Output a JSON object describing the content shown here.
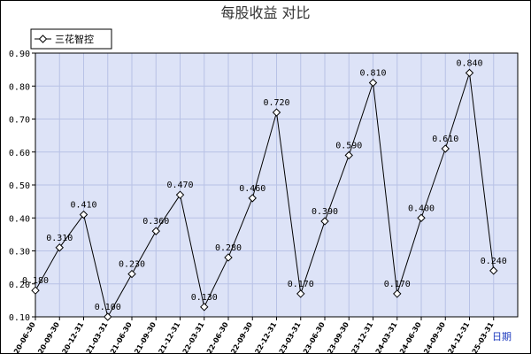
{
  "chart_data": {
    "type": "line",
    "title": "每股收益  对比",
    "xlabel": "日期",
    "ylabel": "",
    "ylim": [
      0.1,
      0.9
    ],
    "yticks": [
      "0.90",
      "0.80",
      "0.70",
      "0.60",
      "0.50",
      "0.40",
      "0.30",
      "0.20",
      "0.10"
    ],
    "grid": true,
    "legend_position": "top-left",
    "categories": [
      "2020-06-30",
      "2020-09-30",
      "2020-12-31",
      "2021-03-31",
      "2021-06-30",
      "2021-09-30",
      "2021-12-31",
      "2022-03-31",
      "2022-06-30",
      "2022-09-30",
      "2022-12-31",
      "2023-03-31",
      "2023-06-30",
      "2023-09-30",
      "2023-12-31",
      "2024-03-31",
      "2024-06-30",
      "2024-09-30",
      "2024-12-31",
      "2025-03-31"
    ],
    "series": [
      {
        "name": "三花智控",
        "values": [
          0.18,
          0.31,
          0.41,
          0.1,
          0.23,
          0.36,
          0.47,
          0.13,
          0.28,
          0.46,
          0.72,
          0.17,
          0.39,
          0.59,
          0.81,
          0.17,
          0.4,
          0.61,
          0.84,
          0.24
        ],
        "labels": [
          "0.180",
          "0.310",
          "0.410",
          "0.100",
          "0.230",
          "0.360",
          "0.470",
          "0.130",
          "0.280",
          "0.460",
          "0.720",
          "0.170",
          "0.390",
          "0.590",
          "0.810",
          "0.170",
          "0.400",
          "0.610",
          "0.840",
          "0.240"
        ],
        "color": "#000000"
      }
    ],
    "colors": {
      "plot_background": "#dde3f7",
      "grid": "#b8c2e6",
      "border": "#000000"
    }
  }
}
